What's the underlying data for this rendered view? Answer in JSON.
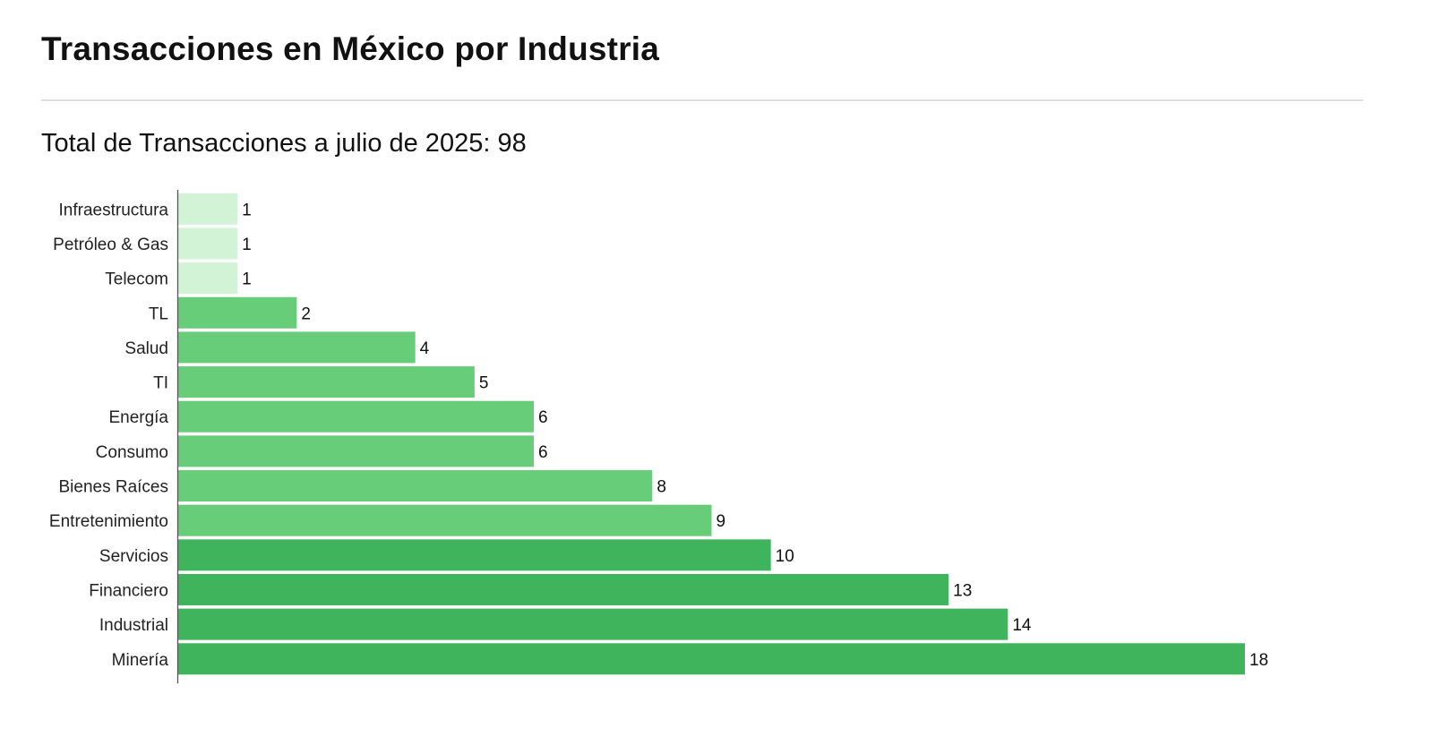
{
  "header": {
    "title": "Transacciones en México por Industria",
    "subtitle": "Total de Transacciones a julio de 2025: 98"
  },
  "chart_data": {
    "type": "bar",
    "orientation": "horizontal",
    "categories": [
      "Infraestructura",
      "Petróleo & Gas",
      "Telecom",
      "TL",
      "Salud",
      "TI",
      "Energía",
      "Consumo",
      "Bienes Raíces",
      "Entretenimiento",
      "Servicios",
      "Financiero",
      "Industrial",
      "Minería"
    ],
    "values": [
      1,
      1,
      1,
      2,
      4,
      5,
      6,
      6,
      8,
      9,
      10,
      13,
      14,
      18
    ],
    "bar_colors": [
      "#d3f3d6",
      "#d3f3d6",
      "#d3f3d6",
      "#68cd78",
      "#68cd78",
      "#68cd78",
      "#68cd78",
      "#68cd78",
      "#68cd78",
      "#68cd78",
      "#40b45c",
      "#40b45c",
      "#40b45c",
      "#40b45c"
    ],
    "xlim": [
      0,
      18
    ],
    "grid": false,
    "legend": "none",
    "data_labels": true
  }
}
